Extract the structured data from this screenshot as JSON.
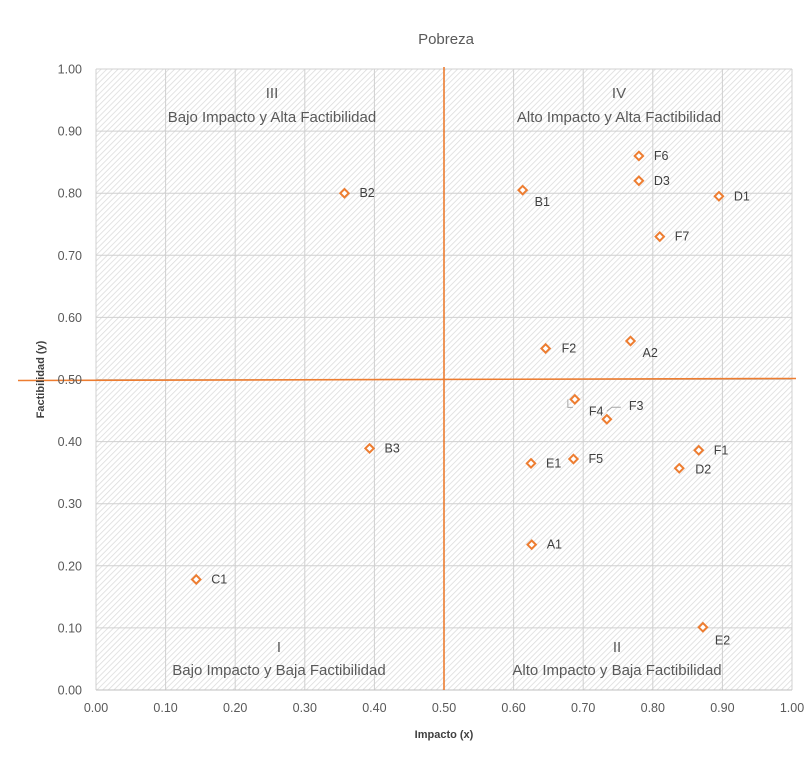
{
  "chart_data": {
    "type": "scatter",
    "title": "Pobreza",
    "xlabel": "Impacto (x)",
    "ylabel": "Factibilidad (y)",
    "xlim": [
      0,
      1
    ],
    "ylim": [
      0,
      1
    ],
    "x_ticks": [
      "0.00",
      "0.10",
      "0.20",
      "0.30",
      "0.40",
      "0.50",
      "0.60",
      "0.70",
      "0.80",
      "0.90",
      "1.00"
    ],
    "y_ticks": [
      "0.00",
      "0.10",
      "0.20",
      "0.30",
      "0.40",
      "0.50",
      "0.60",
      "0.70",
      "0.80",
      "0.90",
      "1.00"
    ],
    "grid": true,
    "marker_color": "#ED7D31",
    "divider_color": "#ED7D31",
    "dividers": {
      "x": 0.5,
      "y": 0.5
    },
    "quadrants": [
      {
        "id": "III",
        "numeral": "III",
        "text": "Bajo Impacto y Alta Factibilidad"
      },
      {
        "id": "IV",
        "numeral": "IV",
        "text": "Alto Impacto y Alta Factibilidad"
      },
      {
        "id": "I",
        "numeral": "I",
        "text": "Bajo Impacto y Baja Factibilidad"
      },
      {
        "id": "II",
        "numeral": "II",
        "text": "Alto Impacto y Baja Factibilidad"
      }
    ],
    "points": [
      {
        "label": "B2",
        "x": 0.357,
        "y": 0.8
      },
      {
        "label": "B1",
        "x": 0.613,
        "y": 0.805
      },
      {
        "label": "F6",
        "x": 0.78,
        "y": 0.86
      },
      {
        "label": "D3",
        "x": 0.78,
        "y": 0.82
      },
      {
        "label": "D1",
        "x": 0.895,
        "y": 0.795
      },
      {
        "label": "F7",
        "x": 0.81,
        "y": 0.73
      },
      {
        "label": "F2",
        "x": 0.646,
        "y": 0.55
      },
      {
        "label": "A2",
        "x": 0.768,
        "y": 0.562
      },
      {
        "label": "F4",
        "x": 0.688,
        "y": 0.468
      },
      {
        "label": "F3",
        "x": 0.734,
        "y": 0.436
      },
      {
        "label": "B3",
        "x": 0.393,
        "y": 0.389
      },
      {
        "label": "E1",
        "x": 0.625,
        "y": 0.365
      },
      {
        "label": "F5",
        "x": 0.686,
        "y": 0.372
      },
      {
        "label": "F1",
        "x": 0.866,
        "y": 0.386
      },
      {
        "label": "D2",
        "x": 0.838,
        "y": 0.357
      },
      {
        "label": "A1",
        "x": 0.626,
        "y": 0.234
      },
      {
        "label": "C1",
        "x": 0.144,
        "y": 0.178
      },
      {
        "label": "E2",
        "x": 0.872,
        "y": 0.101
      }
    ]
  }
}
